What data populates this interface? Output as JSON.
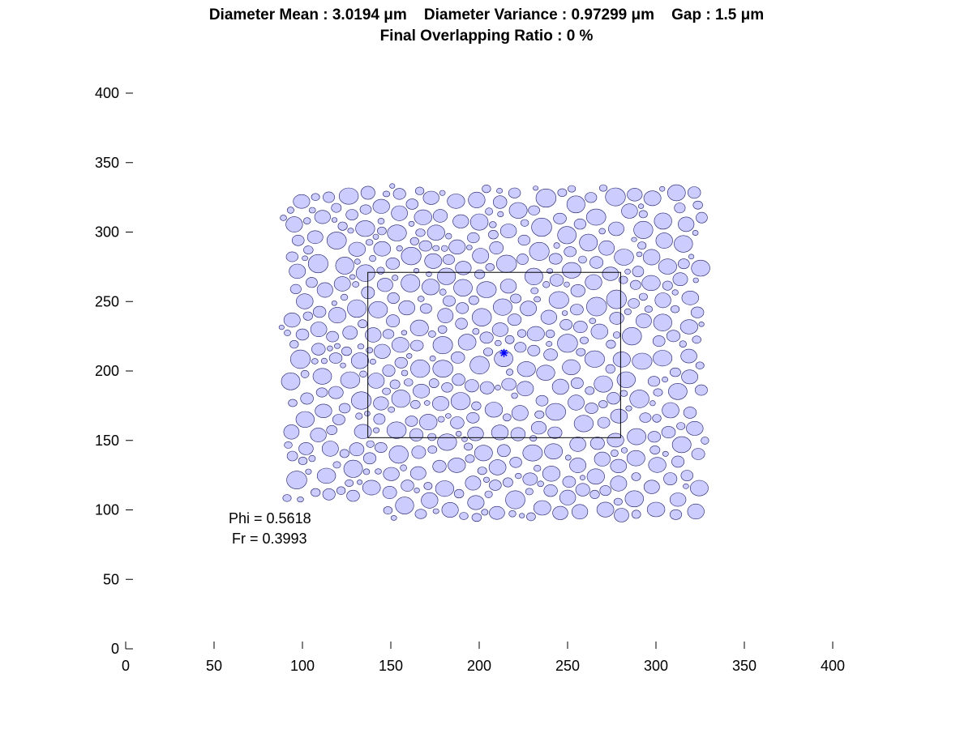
{
  "chart_data": {
    "type": "scatter",
    "title_line1": "Diameter Mean : 3.0194 μm    Diameter Variance : 0.97299 μm    Gap : 1.5 μm",
    "title_line2": "Final Overlapping Ratio : 0 %",
    "xlabel": "",
    "ylabel": "",
    "xlim": [
      0,
      400
    ],
    "ylim": [
      0,
      400
    ],
    "x_ticks": [
      0,
      50,
      100,
      150,
      200,
      250,
      300,
      350,
      400
    ],
    "y_ticks": [
      0,
      50,
      100,
      150,
      200,
      250,
      300,
      350,
      400
    ],
    "grid": false,
    "particle_region": {
      "x_range": [
        78,
        333
      ],
      "y_range": [
        86,
        342
      ],
      "cutout": {
        "x_range": [
          60,
          145
        ],
        "y_range": [
          60,
          105
        ]
      },
      "diameter_mean": 3.0194,
      "diameter_variance": 0.97299,
      "gap": 1.5,
      "fill": "#ccccff",
      "stroke": "#1a1a66"
    },
    "inner_box": {
      "x": [
        137,
        280
      ],
      "y": [
        152,
        271
      ],
      "stroke": "#000000"
    },
    "center_marker": {
      "x": 214,
      "y": 213,
      "symbol": "*",
      "color": "#0000ff"
    },
    "annotations": [
      {
        "text": "Phi = 0.5618"
      },
      {
        "text": "Fr = 0.3993"
      }
    ]
  }
}
